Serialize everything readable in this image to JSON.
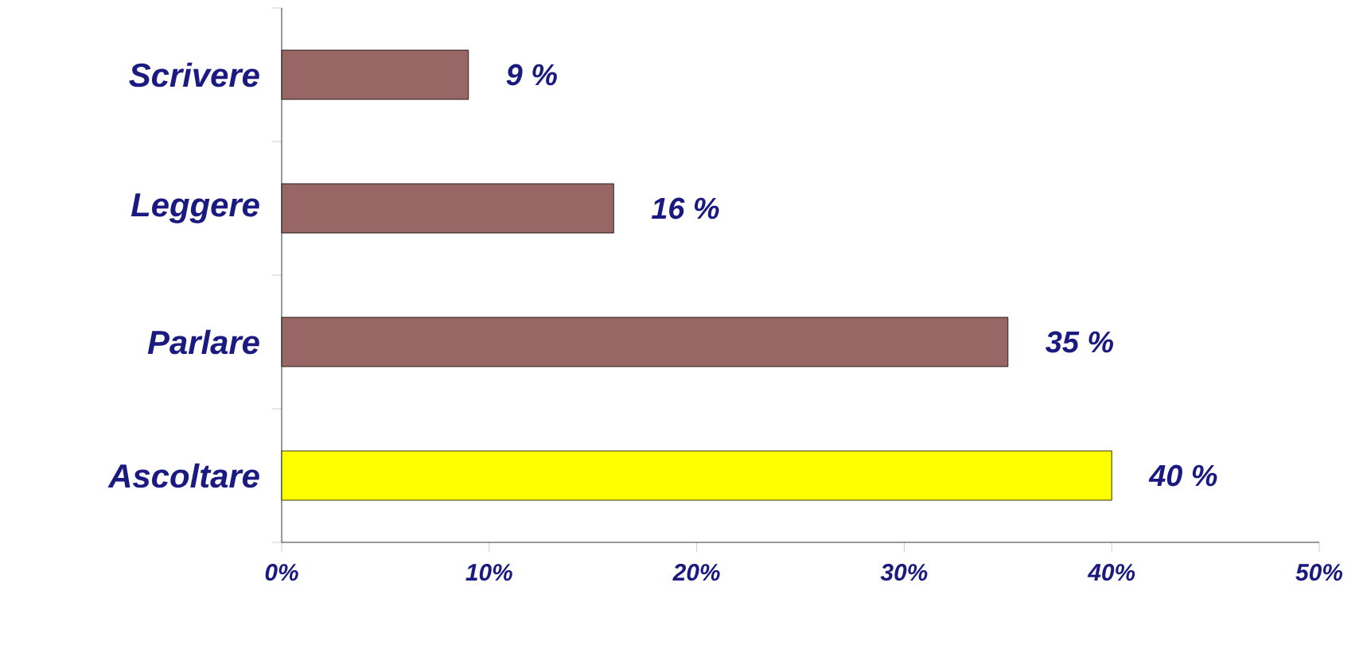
{
  "chart_data": {
    "type": "bar",
    "orientation": "horizontal",
    "categories": [
      "Scrivere",
      "Leggere",
      "Parlare",
      "Ascoltare"
    ],
    "values": [
      9,
      16,
      35,
      40
    ],
    "colors": [
      "#996666",
      "#996666",
      "#996666",
      "#ffff00"
    ],
    "value_labels": [
      "9 %",
      "16 %",
      "35 %",
      "40 %"
    ],
    "xlim": [
      0,
      50
    ],
    "xticks": [
      {
        "value": 0,
        "label": "0%"
      },
      {
        "value": 10,
        "label": "10%"
      },
      {
        "value": 20,
        "label": "20%"
      },
      {
        "value": 30,
        "label": "30%"
      },
      {
        "value": 40,
        "label": "40%"
      },
      {
        "value": 50,
        "label": "50%"
      }
    ],
    "grid": false
  }
}
